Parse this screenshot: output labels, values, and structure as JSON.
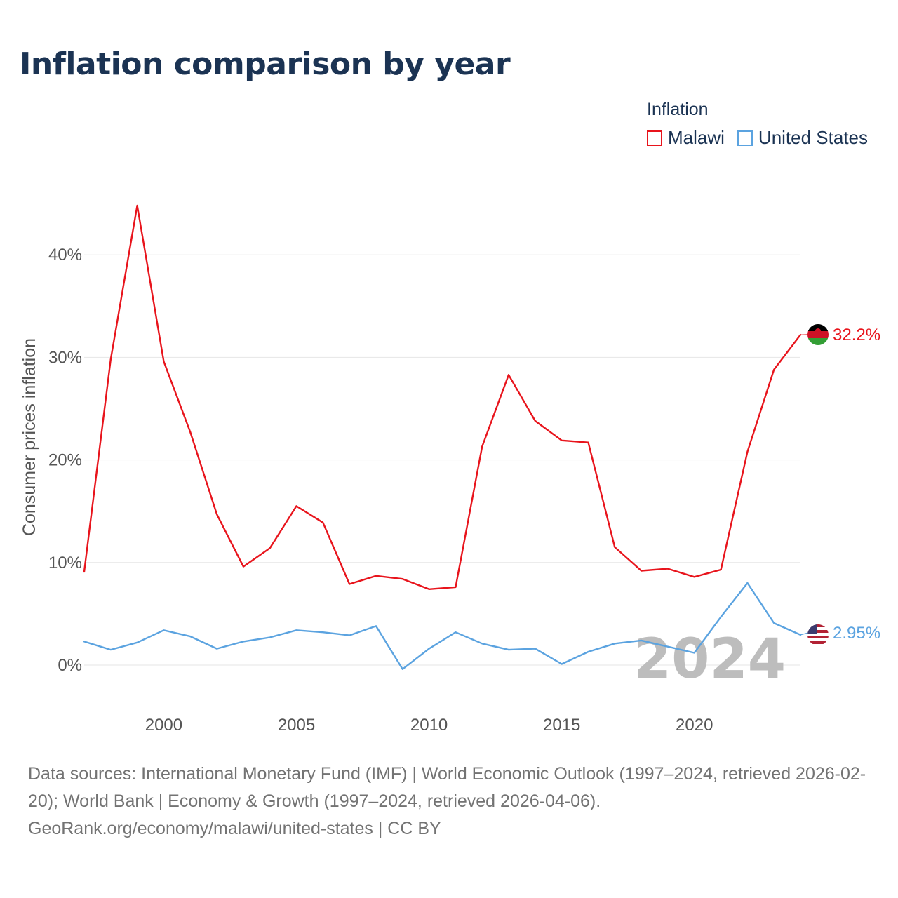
{
  "title": "Inflation comparison by year",
  "legend": {
    "title": "Inflation",
    "items": [
      {
        "label": "Malawi",
        "color": "#e8141c"
      },
      {
        "label": "United States",
        "color": "#5ba3e0"
      }
    ]
  },
  "chart_data": {
    "type": "line",
    "title": "Inflation comparison by year",
    "xlabel": "",
    "ylabel": "Consumer prices inflation",
    "xlim": [
      1997,
      2024
    ],
    "ylim": [
      -4,
      48
    ],
    "x_ticks": [
      2000,
      2005,
      2010,
      2015,
      2020
    ],
    "y_ticks": [
      {
        "value": 0,
        "label": "0%"
      },
      {
        "value": 10,
        "label": "10%"
      },
      {
        "value": 20,
        "label": "20%"
      },
      {
        "value": 30,
        "label": "30%"
      },
      {
        "value": 40,
        "label": "40%"
      }
    ],
    "x": [
      1997,
      1998,
      1999,
      2000,
      2001,
      2002,
      2003,
      2004,
      2005,
      2006,
      2007,
      2008,
      2009,
      2010,
      2011,
      2012,
      2013,
      2014,
      2015,
      2016,
      2017,
      2018,
      2019,
      2020,
      2021,
      2022,
      2023,
      2024
    ],
    "series": [
      {
        "name": "Malawi",
        "color": "#e8141c",
        "end_label": "32.2%",
        "values": [
          9.1,
          29.8,
          44.8,
          29.6,
          22.7,
          14.7,
          9.6,
          11.4,
          15.5,
          13.9,
          7.9,
          8.7,
          8.4,
          7.4,
          7.6,
          21.3,
          28.3,
          23.8,
          21.9,
          21.7,
          11.5,
          9.2,
          9.4,
          8.6,
          9.3,
          20.8,
          28.8,
          32.2
        ]
      },
      {
        "name": "United States",
        "color": "#5ba3e0",
        "end_label": "2.95%",
        "values": [
          2.3,
          1.5,
          2.2,
          3.4,
          2.8,
          1.6,
          2.3,
          2.7,
          3.4,
          3.2,
          2.9,
          3.8,
          -0.4,
          1.6,
          3.2,
          2.1,
          1.5,
          1.6,
          0.1,
          1.3,
          2.1,
          2.4,
          1.8,
          1.2,
          4.7,
          8.0,
          4.1,
          2.95
        ]
      }
    ],
    "current_year_label": "2024"
  },
  "footer": {
    "line1": "Data sources: International Monetary Fund (IMF) | World Economic Outlook (1997–2024, retrieved 2026-02-20); World Bank | Economy & Growth (1997–2024, retrieved 2026-04-06).",
    "line2": "GeoRank.org/economy/malawi/united-states | CC BY"
  }
}
